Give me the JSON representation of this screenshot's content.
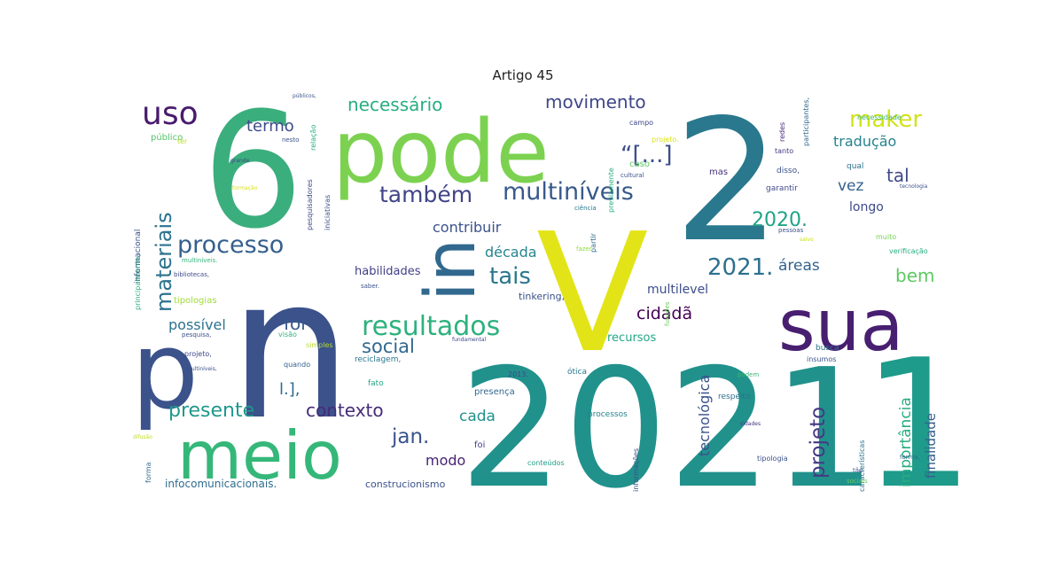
{
  "title": "Artigo 45",
  "words": [
    {
      "t": "6",
      "c": "#3bae7d"
    },
    {
      "t": "pode",
      "c": "#7cd250"
    },
    {
      "t": "2",
      "c": "#2a788e"
    },
    {
      "t": "V",
      "c": "#e2e418"
    },
    {
      "t": "n",
      "c": "#3b528b"
    },
    {
      "t": "2021",
      "c": "#21918c"
    },
    {
      "t": "p",
      "c": "#3b528b"
    },
    {
      "t": "meio",
      "c": "#35b779"
    },
    {
      "t": "sua",
      "c": "#481f70"
    },
    {
      "t": "in",
      "c": "#31688e"
    },
    {
      "t": "1",
      "c": "#1e9b8a"
    },
    {
      "t": "uso",
      "c": "#481b6d"
    },
    {
      "t": "processo",
      "c": "#355f8d"
    },
    {
      "t": "também",
      "c": "#414487"
    },
    {
      "t": "multiníveis",
      "c": "#38598c"
    },
    {
      "t": "resultados",
      "c": "#2db27d"
    },
    {
      "t": "materiais",
      "c": "#2c728e"
    },
    {
      "t": "necessário",
      "c": "#28ae80"
    },
    {
      "t": "movimento",
      "c": "#404688"
    },
    {
      "t": "maker",
      "c": "#d2e21b"
    },
    {
      "t": "tradução",
      "c": "#26828e"
    },
    {
      "t": "tal",
      "c": "#3e4989"
    },
    {
      "t": "vez",
      "c": "#34618d"
    },
    {
      "t": "longo",
      "c": "#3e4a89"
    },
    {
      "t": "2020.",
      "c": "#20a386"
    },
    {
      "t": "2021.",
      "c": "#2d708e"
    },
    {
      "t": "áreas",
      "c": "#33638d"
    },
    {
      "t": "bem",
      "c": "#5ec962"
    },
    {
      "t": "tais",
      "c": "#2a768e"
    },
    {
      "t": "contribuir",
      "c": "#3b528b"
    },
    {
      "t": "década",
      "c": "#25858e"
    },
    {
      "t": "habilidades",
      "c": "#424086"
    },
    {
      "t": "multilevel",
      "c": "#3d4e8a"
    },
    {
      "t": "cidadã",
      "c": "#440154"
    },
    {
      "t": "recursos",
      "c": "#22a785"
    },
    {
      "t": "social",
      "c": "#31688e"
    },
    {
      "t": "for",
      "c": "#38588c"
    },
    {
      "t": "possível",
      "c": "#2c728e"
    },
    {
      "t": "presente",
      "c": "#1f988b"
    },
    {
      "t": "contexto",
      "c": "#472c7a"
    },
    {
      "t": "l.],",
      "c": "#306a8e"
    },
    {
      "t": "jan.",
      "c": "#3a548c"
    },
    {
      "t": "cada",
      "c": "#20928c"
    },
    {
      "t": "modo",
      "c": "#482374"
    },
    {
      "t": "termo",
      "c": "#3e4c8a"
    },
    {
      "t": "“[...]",
      "c": "#3d4d8a"
    },
    {
      "t": "tecnológica",
      "c": "#3b528b"
    },
    {
      "t": "projeto",
      "c": "#443983"
    },
    {
      "t": "importância",
      "c": "#27ad81"
    },
    {
      "t": "finalidade",
      "c": "#35608d"
    },
    {
      "t": "infocomunicacionais.",
      "c": "#2f6c8e"
    },
    {
      "t": "construcionismo",
      "c": "#3b528b"
    },
    {
      "t": "tipologias",
      "c": "#a0da39"
    },
    {
      "t": "multiníveis.",
      "c": "#32b67a"
    },
    {
      "t": "bibliotecas,",
      "c": "#3e4989"
    },
    {
      "t": "público",
      "c": "#52c569"
    },
    {
      "t": "informacional",
      "c": "#3c4f8a"
    },
    {
      "t": "principalmente,",
      "c": "#29af7f"
    },
    {
      "t": "pesquisadores",
      "c": "#3e4a89"
    },
    {
      "t": "iniciativas",
      "c": "#3b528b"
    },
    {
      "t": "ciência",
      "c": "#29798e"
    },
    {
      "t": "campo",
      "c": "#3f4788"
    },
    {
      "t": "fazer",
      "c": "#8fd744"
    },
    {
      "t": "funções",
      "c": "#6ccd5a"
    },
    {
      "t": "tinkering,",
      "c": "#3b518b"
    },
    {
      "t": "presença",
      "c": "#31688e"
    },
    {
      "t": "fato",
      "c": "#21a685"
    },
    {
      "t": "foi",
      "c": "#424186"
    },
    {
      "t": "conteúdos",
      "c": "#1f9e89"
    },
    {
      "t": "informações",
      "c": "#3b528b"
    },
    {
      "t": "processos",
      "c": "#26818e"
    },
    {
      "t": "ótica",
      "c": "#2a778e"
    },
    {
      "t": "2013.",
      "c": "#3e4989"
    },
    {
      "t": "busca",
      "c": "#2b748e"
    },
    {
      "t": "insumos",
      "c": "#3b528b"
    },
    {
      "t": "respeito",
      "c": "#2e6f8e"
    },
    {
      "t": "podem",
      "c": "#3aba76"
    },
    {
      "t": "tipologia",
      "c": "#3b528b"
    },
    {
      "t": "características",
      "c": "#2b748e"
    },
    {
      "t": "sociais",
      "c": "#65cb5e"
    },
    {
      "t": "tão",
      "c": "#3a548c"
    },
    {
      "t": "garantir",
      "c": "#3e4989"
    },
    {
      "t": "necessidade",
      "c": "#3bbb75"
    },
    {
      "t": "redes",
      "c": "#482878"
    },
    {
      "t": "participantes,",
      "c": "#31688e"
    },
    {
      "t": "verificação",
      "c": "#26ad81"
    },
    {
      "t": "muito",
      "c": "#73d056"
    },
    {
      "t": "forma,",
      "c": "#32658e"
    },
    {
      "t": "disso,",
      "c": "#3b528b"
    },
    {
      "t": "tanto",
      "c": "#443a83"
    },
    {
      "t": "qual",
      "c": "#2c728e"
    },
    {
      "t": "mas",
      "c": "#46327e"
    },
    {
      "t": "caso",
      "c": "#5ec962"
    },
    {
      "t": "cultural",
      "c": "#3b528b"
    },
    {
      "t": "previamente",
      "c": "#25ab82"
    },
    {
      "t": "projeto.",
      "c": "#d8e219"
    },
    {
      "t": "partir",
      "c": "#2e6e8e"
    },
    {
      "t": "pessoas",
      "c": "#3b528b"
    },
    {
      "t": "visão",
      "c": "#31b57b"
    },
    {
      "t": "quando",
      "c": "#355f8d"
    },
    {
      "t": "reciclagem,",
      "c": "#2a768e"
    },
    {
      "t": "simples",
      "c": "#b5de2b"
    },
    {
      "t": "pesquisa,",
      "c": "#3b528b"
    },
    {
      "t": "projeto,",
      "c": "#3e4989"
    },
    {
      "t": "multiníveis,",
      "c": "#3b528b"
    },
    {
      "t": "forma",
      "c": "#306a8e"
    },
    {
      "t": "grande",
      "c": "#3e4989"
    },
    {
      "t": "nesto",
      "c": "#3b528b"
    },
    {
      "t": "relação",
      "c": "#25ab82"
    },
    {
      "t": "públicos,",
      "c": "#3b528b"
    },
    {
      "t": "fundamental",
      "c": "#3e4989"
    },
    {
      "t": "salvo",
      "c": "#cae11f"
    },
    {
      "t": "formação",
      "c": "#d8e219"
    },
    {
      "t": "tecnologia",
      "c": "#3b528b"
    },
    {
      "t": "cidades",
      "c": "#46327e"
    },
    {
      "t": "ter",
      "c": "#bddf26"
    },
    {
      "t": "difusão",
      "c": "#bddf26"
    },
    {
      "t": "saber.",
      "c": "#3b528b"
    }
  ]
}
